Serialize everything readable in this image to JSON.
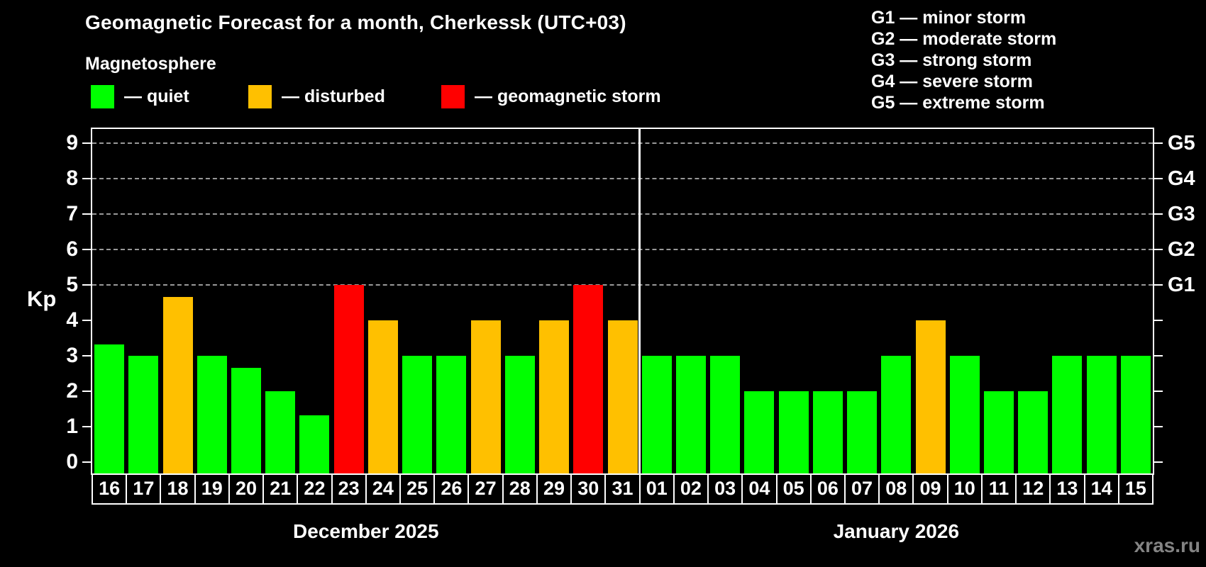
{
  "header": {
    "title": "Geomagnetic Forecast for a month, Cherkessk (UTC+03)",
    "subtitle": "Magnetosphere"
  },
  "legend": {
    "items": [
      {
        "key": "quiet",
        "label": "— quiet",
        "color": "#00ff00"
      },
      {
        "key": "disturbed",
        "label": "— disturbed",
        "color": "#ffc000"
      },
      {
        "key": "storm",
        "label": "— geomagnetic storm",
        "color": "#ff0000"
      }
    ]
  },
  "g_scale_legend": {
    "items": [
      "G1 — minor storm",
      "G2 — moderate storm",
      "G3 — strong storm",
      "G4 — severe storm",
      "G5 — extreme storm"
    ]
  },
  "watermark": "xras.ru",
  "chart_data": {
    "type": "bar",
    "title": "Geomagnetic Forecast for a month, Cherkessk (UTC+03)",
    "subtitle": "Magnetosphere",
    "ylabel": "Kp",
    "ylim": [
      0,
      9.4
    ],
    "y_ticks": [
      0,
      1,
      2,
      3,
      4,
      5,
      6,
      7,
      8,
      9
    ],
    "gridlines_at": [
      5,
      6,
      7,
      8,
      9
    ],
    "grid_style": "dashed gray horizontal",
    "right_axis_labels": [
      {
        "kp": 5,
        "label": "G1"
      },
      {
        "kp": 6,
        "label": "G2"
      },
      {
        "kp": 7,
        "label": "G3"
      },
      {
        "kp": 8,
        "label": "G4"
      },
      {
        "kp": 9,
        "label": "G5"
      }
    ],
    "status_colors": {
      "quiet": "#00ff00",
      "disturbed": "#ffc000",
      "storm": "#ff0000"
    },
    "legend_position": "top-left",
    "months": [
      {
        "label": "December 2025",
        "days": [
          {
            "date": "16",
            "kp": 3.33,
            "status": "quiet"
          },
          {
            "date": "17",
            "kp": 3,
            "status": "quiet"
          },
          {
            "date": "18",
            "kp": 4.67,
            "status": "disturbed"
          },
          {
            "date": "19",
            "kp": 3,
            "status": "quiet"
          },
          {
            "date": "20",
            "kp": 2.67,
            "status": "quiet"
          },
          {
            "date": "21",
            "kp": 2,
            "status": "quiet"
          },
          {
            "date": "22",
            "kp": 1.33,
            "status": "quiet"
          },
          {
            "date": "23",
            "kp": 5,
            "status": "storm"
          },
          {
            "date": "24",
            "kp": 4,
            "status": "disturbed"
          },
          {
            "date": "25",
            "kp": 3,
            "status": "quiet"
          },
          {
            "date": "26",
            "kp": 3,
            "status": "quiet"
          },
          {
            "date": "27",
            "kp": 4,
            "status": "disturbed"
          },
          {
            "date": "28",
            "kp": 3,
            "status": "quiet"
          },
          {
            "date": "29",
            "kp": 4,
            "status": "disturbed"
          },
          {
            "date": "30",
            "kp": 5,
            "status": "storm"
          },
          {
            "date": "31",
            "kp": 4,
            "status": "disturbed"
          }
        ]
      },
      {
        "label": "January 2026",
        "days": [
          {
            "date": "01",
            "kp": 3,
            "status": "quiet"
          },
          {
            "date": "02",
            "kp": 3,
            "status": "quiet"
          },
          {
            "date": "03",
            "kp": 3,
            "status": "quiet"
          },
          {
            "date": "04",
            "kp": 2,
            "status": "quiet"
          },
          {
            "date": "05",
            "kp": 2,
            "status": "quiet"
          },
          {
            "date": "06",
            "kp": 2,
            "status": "quiet"
          },
          {
            "date": "07",
            "kp": 2,
            "status": "quiet"
          },
          {
            "date": "08",
            "kp": 3,
            "status": "quiet"
          },
          {
            "date": "09",
            "kp": 4,
            "status": "disturbed"
          },
          {
            "date": "10",
            "kp": 3,
            "status": "quiet"
          },
          {
            "date": "11",
            "kp": 2,
            "status": "quiet"
          },
          {
            "date": "12",
            "kp": 2,
            "status": "quiet"
          },
          {
            "date": "13",
            "kp": 3,
            "status": "quiet"
          },
          {
            "date": "14",
            "kp": 3,
            "status": "quiet"
          },
          {
            "date": "15",
            "kp": 3,
            "status": "quiet"
          }
        ]
      }
    ]
  }
}
